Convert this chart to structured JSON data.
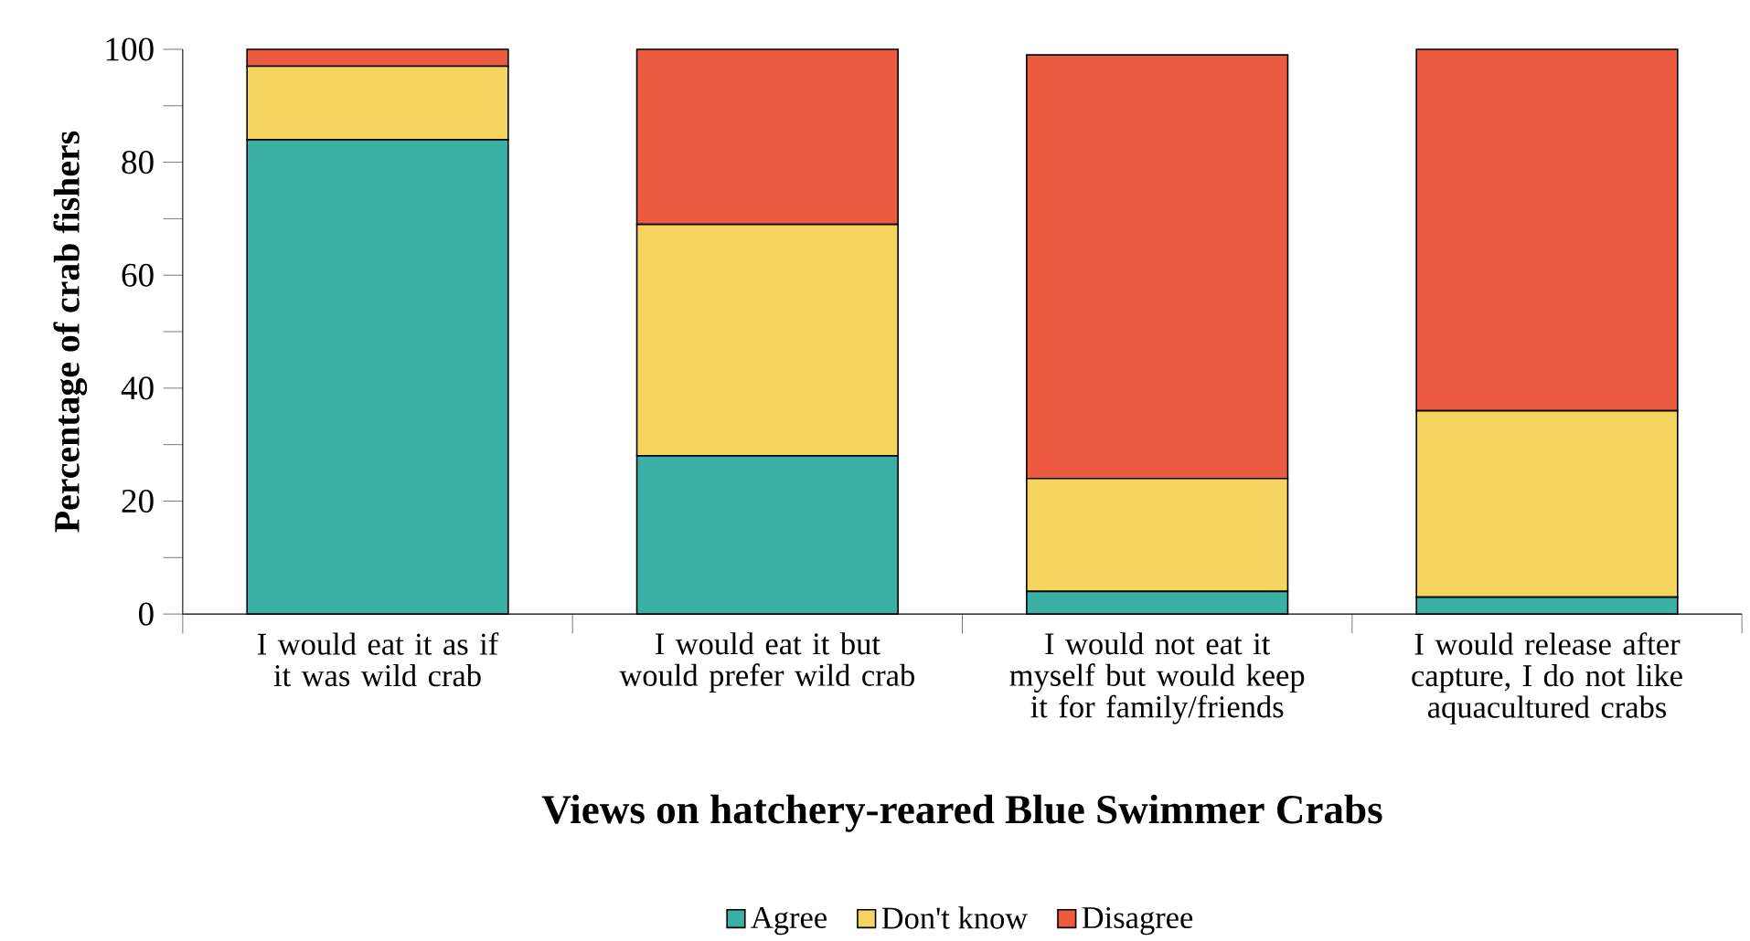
{
  "chart_data": {
    "type": "bar",
    "stacked": true,
    "xlabel": "Views on hatchery-reared Blue Swimmer Crabs",
    "ylabel": "Percentage of crab fishers",
    "categories": [
      "I would eat it as if it was wild crab",
      "I would eat it but would prefer wild crab",
      "I would not eat it myself but would keep it for family/friends",
      "I would release after capture, I do not like aquacultured crabs"
    ],
    "series": [
      {
        "name": "Agree",
        "color": "#3aafa4",
        "values": [
          84,
          28,
          4,
          3
        ]
      },
      {
        "name": "Don't know",
        "color": "#f5d55f",
        "values": [
          13,
          41,
          20,
          33
        ]
      },
      {
        "name": "Disagree",
        "color": "#ec5a3f",
        "values": [
          3,
          31,
          75,
          64
        ]
      }
    ],
    "ylim": [
      0,
      100
    ],
    "yticks": [
      0,
      {
        "value": 10,
        "label": null
      },
      20,
      {
        "value": 30,
        "label": null
      },
      40,
      {
        "value": 50,
        "label": null
      },
      60,
      {
        "value": 70,
        "label": null
      },
      80,
      {
        "value": 90,
        "label": null
      },
      100
    ],
    "legend": "bottom"
  }
}
